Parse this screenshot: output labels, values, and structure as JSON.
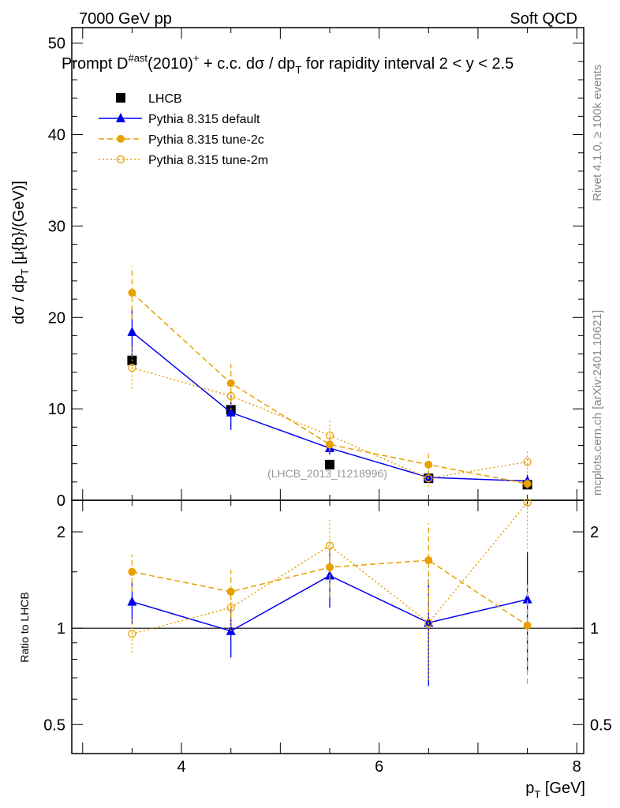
{
  "header": {
    "left": "7000 GeV pp",
    "right": "Soft QCD"
  },
  "side_labels": {
    "rivet": "Rivet 4.1.0, ≥ 100k events",
    "mcplots": "mcplots.cern.ch [arXiv:2401.10621]"
  },
  "watermark": "(LHCB_2013_I1218996)",
  "chart_data": [
    {
      "type": "line",
      "title_parts": {
        "a": "Prompt D",
        "sup1": "#ast",
        "b": "(2010)",
        "sup2": "+",
        "c": " + c.c.  dσ / dp",
        "sub": "T",
        "d": " for rapidity interval 2 < y < 2.5"
      },
      "ylabel": "dσ / dp_T [μ{b}/(GeV)]",
      "ylabel_parts": {
        "a": "dσ / dp",
        "sub": "T",
        "b": " [μ{b}/(GeV)]"
      },
      "xlim": [
        2.89,
        8.07
      ],
      "ylim": [
        0,
        51.7
      ],
      "yticks": [
        0,
        10,
        20,
        30,
        40,
        50
      ],
      "yticklabels": [
        "0",
        "10",
        "20",
        "30",
        "40",
        "50"
      ],
      "legend_position": "top-left",
      "x": [
        3.5,
        4.5,
        5.5,
        6.5,
        7.5
      ],
      "series": [
        {
          "name": "LHCB",
          "color": "#000000",
          "marker": "square",
          "line": "none",
          "values": [
            15.3,
            9.9,
            3.9,
            2.4,
            1.7
          ],
          "errors": [
            0.6,
            0.5,
            0.2,
            0.2,
            0.2
          ]
        },
        {
          "name": "Pythia 8.315 default",
          "color": "#0000ee",
          "marker": "triangle",
          "line": "solid",
          "values": [
            18.4,
            9.6,
            5.7,
            2.5,
            2.1
          ],
          "errors": [
            2.6,
            1.9,
            0.7,
            0.6,
            0.7
          ]
        },
        {
          "name": "Pythia 8.315 tune-2c",
          "color": "#e8a000",
          "marker": "filled-circle",
          "line": "dashed",
          "values": [
            22.7,
            12.8,
            6.1,
            3.9,
            1.8
          ],
          "errors": [
            2.9,
            2.1,
            0.8,
            1.2,
            0.5
          ]
        },
        {
          "name": "Pythia 8.315 tune-2m",
          "color": "#e8a000",
          "marker": "open-circle",
          "line": "dotted",
          "values": [
            14.5,
            11.4,
            7.1,
            2.4,
            4.2
          ],
          "errors": [
            2.3,
            1.5,
            1.6,
            0.9,
            1.2
          ]
        }
      ]
    },
    {
      "type": "line",
      "ylabel": "Ratio to LHCB",
      "xlabel_parts": {
        "a": "p",
        "sub": "T",
        "b": " [GeV]"
      },
      "xlabel": "p_T [GeV]",
      "xlim": [
        2.89,
        8.07
      ],
      "ylim": [
        0.406,
        2.51
      ],
      "yscale": "log",
      "xticks": [
        4,
        6,
        8
      ],
      "xticklabels": [
        "4",
        "6",
        "8"
      ],
      "yticks": [
        0.5,
        1,
        2
      ],
      "yticklabels": [
        "0.5",
        "1",
        "2"
      ],
      "x": [
        3.5,
        4.5,
        5.5,
        6.5,
        7.5
      ],
      "series": [
        {
          "name": "Pythia 8.315 default",
          "color": "#0000ee",
          "marker": "triangle",
          "line": "solid",
          "values": [
            1.21,
            0.98,
            1.46,
            1.04,
            1.23
          ],
          "errors": [
            0.18,
            0.17,
            0.3,
            0.38,
            0.5
          ]
        },
        {
          "name": "Pythia 8.315 tune-2c",
          "color": "#e8a000",
          "marker": "filled-circle",
          "line": "dashed",
          "values": [
            1.5,
            1.3,
            1.55,
            1.63,
            1.02
          ],
          "errors": [
            0.2,
            0.22,
            0.3,
            0.5,
            0.35
          ]
        },
        {
          "name": "Pythia 8.315 tune-2m",
          "color": "#e8a000",
          "marker": "open-circle",
          "line": "dotted",
          "values": [
            0.96,
            1.16,
            1.81,
            1.04,
            2.47
          ],
          "errors": [
            0.12,
            0.18,
            0.4,
            0.35,
            0.7
          ]
        }
      ]
    }
  ]
}
